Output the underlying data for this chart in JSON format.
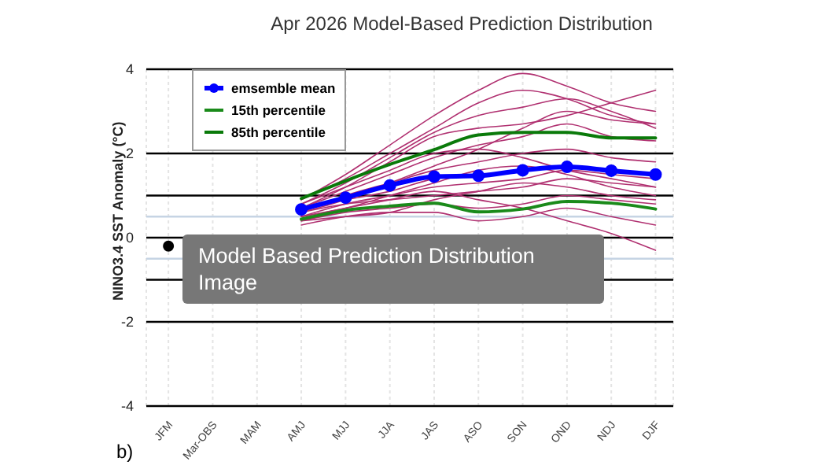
{
  "chart_data": {
    "type": "line",
    "title": "Apr 2026 Model-Based Prediction Distribution",
    "ylabel": "NINO3.4 SST Anomaly (°C)",
    "categories": [
      "JFM",
      "Mar-OBS",
      "MAM",
      "AMJ",
      "MJJ",
      "JJA",
      "JAS",
      "ASO",
      "SON",
      "OND",
      "NDJ",
      "DJF"
    ],
    "ylim": [
      -4,
      4
    ],
    "yticks": [
      -4,
      -2,
      0,
      2,
      4
    ],
    "grid": true,
    "legend": "top left",
    "ref_lines": [
      {
        "axis": "y",
        "value": 1,
        "color": "#000000"
      },
      {
        "axis": "y",
        "value": -1,
        "color": "#000000"
      },
      {
        "axis": "y",
        "value": 0.5,
        "color": "#c6d4e4"
      },
      {
        "axis": "y",
        "value": -0.5,
        "color": "#c6d4e4"
      }
    ],
    "annotations": [
      "Model Based Prediction Distribution Image",
      "b)"
    ],
    "series": [
      {
        "color": "#b03070",
        "marker": "none",
        "values": [
          null,
          null,
          null,
          0.9,
          1.5,
          2.2,
          2.9,
          3.5,
          3.9,
          3.6,
          3.2,
          3.0
        ]
      },
      {
        "color": "#b03070",
        "marker": "none",
        "values": [
          null,
          null,
          null,
          0.8,
          1.3,
          1.9,
          2.5,
          2.9,
          3.1,
          3.3,
          3.0,
          2.6
        ]
      },
      {
        "color": "#b03070",
        "marker": "none",
        "values": [
          null,
          null,
          null,
          0.7,
          1.1,
          1.5,
          1.9,
          2.2,
          2.4,
          2.7,
          2.4,
          2.3
        ]
      },
      {
        "color": "#b03070",
        "marker": "none",
        "values": [
          null,
          null,
          null,
          0.6,
          1.0,
          1.3,
          1.6,
          1.8,
          2.0,
          2.1,
          1.9,
          1.8
        ]
      },
      {
        "color": "#b03070",
        "marker": "none",
        "values": [
          null,
          null,
          null,
          0.7,
          0.9,
          1.1,
          1.4,
          1.5,
          1.6,
          1.7,
          1.6,
          1.5
        ]
      },
      {
        "color": "#b03070",
        "marker": "none",
        "values": [
          null,
          null,
          null,
          0.5,
          0.8,
          1.0,
          1.2,
          1.3,
          1.4,
          1.6,
          1.5,
          1.4
        ]
      },
      {
        "color": "#b03070",
        "marker": "none",
        "values": [
          null,
          null,
          null,
          0.6,
          0.8,
          0.9,
          1.0,
          1.1,
          1.2,
          1.4,
          1.3,
          1.2
        ]
      },
      {
        "color": "#b03070",
        "marker": "none",
        "values": [
          null,
          null,
          null,
          0.4,
          0.6,
          0.7,
          0.8,
          0.7,
          0.8,
          1.0,
          0.9,
          0.8
        ]
      },
      {
        "color": "#b03070",
        "marker": "none",
        "values": [
          null,
          null,
          null,
          0.3,
          0.5,
          0.6,
          0.6,
          0.4,
          0.5,
          0.7,
          0.5,
          0.3
        ]
      },
      {
        "color": "#b03070",
        "marker": "none",
        "values": [
          null,
          null,
          null,
          0.5,
          0.7,
          0.9,
          1.1,
          0.9,
          0.7,
          0.4,
          0.1,
          -0.3
        ]
      },
      {
        "color": "#b03070",
        "marker": "none",
        "values": [
          null,
          null,
          null,
          0.8,
          1.2,
          1.6,
          2.0,
          2.1,
          1.9,
          1.6,
          1.4,
          1.2
        ]
      },
      {
        "color": "#b03070",
        "marker": "none",
        "values": [
          null,
          null,
          null,
          0.7,
          1.2,
          1.8,
          2.4,
          2.6,
          2.7,
          2.9,
          3.2,
          3.5
        ]
      },
      {
        "color": "#b03070",
        "marker": "none",
        "values": [
          null,
          null,
          null,
          0.6,
          0.9,
          1.3,
          1.7,
          2.1,
          2.6,
          3.0,
          2.8,
          2.7
        ]
      },
      {
        "color": "#b03070",
        "marker": "none",
        "values": [
          null,
          null,
          null,
          0.5,
          0.7,
          1.0,
          1.3,
          1.6,
          1.7,
          1.5,
          1.2,
          1.0
        ]
      },
      {
        "color": "#b03070",
        "marker": "none",
        "values": [
          null,
          null,
          null,
          0.4,
          0.5,
          0.6,
          0.9,
          1.1,
          1.3,
          1.2,
          1.0,
          0.9
        ]
      },
      {
        "color": "#b03070",
        "marker": "none",
        "values": [
          null,
          null,
          null,
          0.9,
          1.4,
          2.0,
          2.6,
          3.2,
          3.5,
          3.3,
          2.9,
          2.7
        ]
      },
      {
        "color": "#000000",
        "marker": "circle",
        "values": [
          -0.2,
          null,
          null,
          null,
          null,
          null,
          null,
          null,
          null,
          null,
          null,
          null
        ]
      },
      {
        "name": "85th percentile",
        "color": "#0a7a0a",
        "marker": "none",
        "values": [
          null,
          null,
          null,
          0.93,
          1.35,
          1.74,
          2.09,
          2.44,
          2.5,
          2.5,
          2.37,
          2.37
        ]
      },
      {
        "name": "15th percentile",
        "color": "#1a8a1a",
        "marker": "none",
        "values": [
          null,
          null,
          null,
          0.44,
          0.65,
          0.75,
          0.82,
          0.61,
          0.68,
          0.86,
          0.82,
          0.68
        ]
      },
      {
        "name": "emsemble mean",
        "color": "#0000ff",
        "marker": "circle",
        "values": [
          null,
          null,
          null,
          0.67,
          0.95,
          1.24,
          1.45,
          1.47,
          1.6,
          1.68,
          1.59,
          1.5
        ]
      }
    ]
  }
}
